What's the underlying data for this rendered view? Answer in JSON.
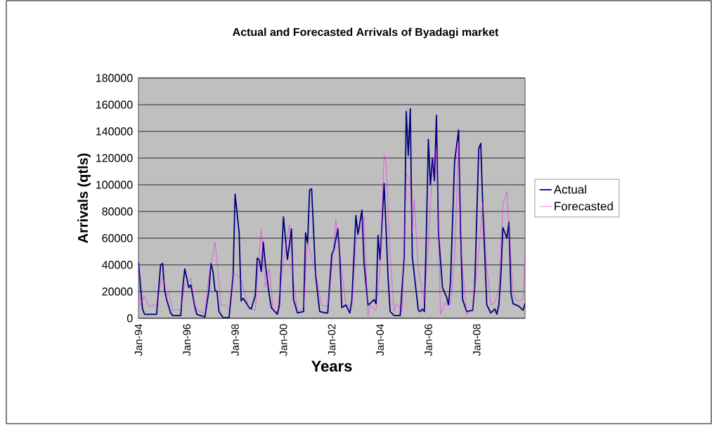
{
  "chart_data": {
    "type": "line",
    "title": "Actual and Forecasted Arrivals of Byadagi market",
    "xlabel": "Years",
    "ylabel": "Arrivals (qtls)",
    "xlim": [
      "1994-01",
      "2010-01"
    ],
    "xticks": [
      {
        "value": "1994-01",
        "label": "Jan-94"
      },
      {
        "value": "1996-01",
        "label": "Jan-96"
      },
      {
        "value": "1998-01",
        "label": "Jan-98"
      },
      {
        "value": "2000-01",
        "label": "Jan-00"
      },
      {
        "value": "2002-01",
        "label": "Jan-02"
      },
      {
        "value": "2004-01",
        "label": "Jan-04"
      },
      {
        "value": "2006-01",
        "label": "Jan-06"
      },
      {
        "value": "2008-01",
        "label": "Jan-08"
      }
    ],
    "ylim": [
      0,
      180000
    ],
    "yticks": [
      0,
      20000,
      40000,
      60000,
      80000,
      100000,
      120000,
      140000,
      160000,
      180000
    ],
    "grid": "y",
    "legend": "right",
    "series": [
      {
        "name": "Actual",
        "color": "#000080",
        "line_style": "solid",
        "x": [
          "1994-01",
          "1994-03",
          "1994-04",
          "1994-10",
          "1994-12",
          "1995-01",
          "1995-02",
          "1995-03",
          "1995-05",
          "1995-06",
          "1995-10",
          "1995-11",
          "1995-12",
          "1996-02",
          "1996-03",
          "1996-05",
          "1996-06",
          "1996-10",
          "1996-12",
          "1997-01",
          "1997-02",
          "1997-03",
          "1997-04",
          "1997-05",
          "1997-07",
          "1997-10",
          "1997-12",
          "1998-01",
          "1998-03",
          "1998-04",
          "1998-05",
          "1998-08",
          "1998-09",
          "1998-10",
          "1998-11",
          "1998-12",
          "1999-01",
          "1999-02",
          "1999-03",
          "1999-04",
          "1999-06",
          "1999-07",
          "1999-10",
          "1999-11",
          "2000-01",
          "2000-02",
          "2000-03",
          "2000-05",
          "2000-06",
          "2000-08",
          "2000-11",
          "2000-12",
          "2001-01",
          "2001-02",
          "2001-03",
          "2001-05",
          "2001-07",
          "2001-10",
          "2001-11",
          "2002-01",
          "2002-02",
          "2002-04",
          "2002-05",
          "2002-06",
          "2002-08",
          "2002-10",
          "2002-11",
          "2003-01",
          "2003-02",
          "2003-04",
          "2003-05",
          "2003-07",
          "2003-08",
          "2003-10",
          "2003-11",
          "2003-12",
          "2004-01",
          "2004-03",
          "2004-05",
          "2004-06",
          "2004-08",
          "2004-11",
          "2005-01",
          "2005-02",
          "2005-03",
          "2005-04",
          "2005-05",
          "2005-08",
          "2005-09",
          "2005-10",
          "2005-11",
          "2005-12",
          "2006-01",
          "2006-02",
          "2006-03",
          "2006-04",
          "2006-05",
          "2006-06",
          "2006-08",
          "2006-10",
          "2006-11",
          "2006-12",
          "2007-02",
          "2007-04",
          "2007-05",
          "2007-06",
          "2007-08",
          "2007-11",
          "2007-12",
          "2008-02",
          "2008-03",
          "2008-04",
          "2008-06",
          "2008-08",
          "2008-10",
          "2008-11",
          "2008-12",
          "2009-01",
          "2009-02",
          "2009-04",
          "2009-05",
          "2009-06",
          "2009-07",
          "2009-10",
          "2009-12",
          "2010-01"
        ],
        "values": [
          42000,
          7000,
          3000,
          3000,
          40000,
          41000,
          21000,
          14000,
          4000,
          2000,
          2000,
          23000,
          37000,
          23000,
          25000,
          8500,
          3000,
          1000,
          21000,
          41000,
          35000,
          21000,
          20000,
          5000,
          500,
          500,
          32000,
          93000,
          64000,
          13000,
          15000,
          8000,
          7000,
          12000,
          17000,
          45000,
          44000,
          35000,
          57000,
          41000,
          17000,
          8000,
          3000,
          10000,
          76000,
          60000,
          44000,
          67000,
          14000,
          4000,
          5000,
          64000,
          56000,
          96000,
          97000,
          32000,
          5000,
          4000,
          4000,
          48000,
          51000,
          67000,
          46000,
          8000,
          10000,
          4000,
          14000,
          77000,
          63000,
          81000,
          42000,
          10000,
          11000,
          14000,
          11000,
          62000,
          44000,
          101000,
          30000,
          5000,
          2000,
          2000,
          46000,
          155000,
          122000,
          157000,
          46000,
          6000,
          5000,
          7000,
          5000,
          64000,
          134000,
          100000,
          120000,
          103000,
          152000,
          64000,
          23000,
          16000,
          10000,
          28000,
          117000,
          141000,
          64000,
          14000,
          5000,
          6000,
          23000,
          127000,
          131000,
          85000,
          10000,
          4000,
          7000,
          3000,
          10000,
          32000,
          68000,
          60000,
          72000,
          19000,
          11000,
          9000,
          6000,
          11000
        ]
      },
      {
        "name": "Forecasted",
        "color": "#ff00ff",
        "line_style": "dotted",
        "x": [
          "1994-01",
          "1994-02",
          "1994-04",
          "1994-06",
          "1994-10",
          "1994-12",
          "1995-01",
          "1995-03",
          "1995-04",
          "1995-06",
          "1995-10",
          "1995-12",
          "1996-02",
          "1996-03",
          "1996-05",
          "1996-07",
          "1996-10",
          "1996-12",
          "1997-03",
          "1997-05",
          "1997-06",
          "1997-08",
          "1997-10",
          "1997-12",
          "1998-02",
          "1998-04",
          "1998-06",
          "1998-08",
          "1998-11",
          "1998-12",
          "1999-02",
          "1999-04",
          "1999-06",
          "1999-08",
          "1999-10",
          "2000-01",
          "2000-04",
          "2000-06",
          "2000-08",
          "2000-11",
          "2001-01",
          "2001-03",
          "2001-05",
          "2001-08",
          "2001-11",
          "2002-01",
          "2002-03",
          "2002-06",
          "2002-08",
          "2002-11",
          "2003-01",
          "2003-05",
          "2003-07",
          "2003-08",
          "2003-11",
          "2004-01",
          "2004-03",
          "2004-04",
          "2004-06",
          "2004-08",
          "2004-09",
          "2004-12",
          "2005-02",
          "2005-04",
          "2005-05",
          "2005-06",
          "2005-08",
          "2005-11",
          "2006-01",
          "2006-03",
          "2006-05",
          "2006-06",
          "2006-07",
          "2006-09",
          "2006-12",
          "2007-02",
          "2007-04",
          "2007-05",
          "2007-08",
          "2007-11",
          "2008-01",
          "2008-03",
          "2008-04",
          "2008-06",
          "2008-08",
          "2008-10",
          "2008-12",
          "2009-02",
          "2009-04",
          "2009-07",
          "2009-09",
          "2009-12",
          "2010-01"
        ],
        "values": [
          40000,
          10000,
          17000,
          9000,
          10000,
          25000,
          32000,
          17000,
          20000,
          6000,
          7000,
          25000,
          28000,
          30000,
          9000,
          5000,
          4000,
          32000,
          57000,
          28000,
          9500,
          10000,
          6000,
          34000,
          32000,
          30000,
          17000,
          7000,
          6000,
          28000,
          67000,
          23000,
          37000,
          5000,
          5000,
          42000,
          70000,
          28000,
          5000,
          8000,
          57000,
          46000,
          34000,
          9500,
          9000,
          37000,
          74000,
          35000,
          10000,
          9000,
          57000,
          76000,
          2000,
          10000,
          6000,
          37000,
          122000,
          117000,
          46000,
          5000,
          11000,
          5000,
          108000,
          103000,
          64000,
          89000,
          37000,
          12000,
          55000,
          114000,
          128000,
          64000,
          3000,
          11000,
          10000,
          46000,
          132000,
          55000,
          3000,
          7000,
          35000,
          67000,
          87000,
          39000,
          10000,
          12000,
          23000,
          85000,
          95000,
          19000,
          13000,
          14000,
          50000
        ]
      }
    ]
  }
}
